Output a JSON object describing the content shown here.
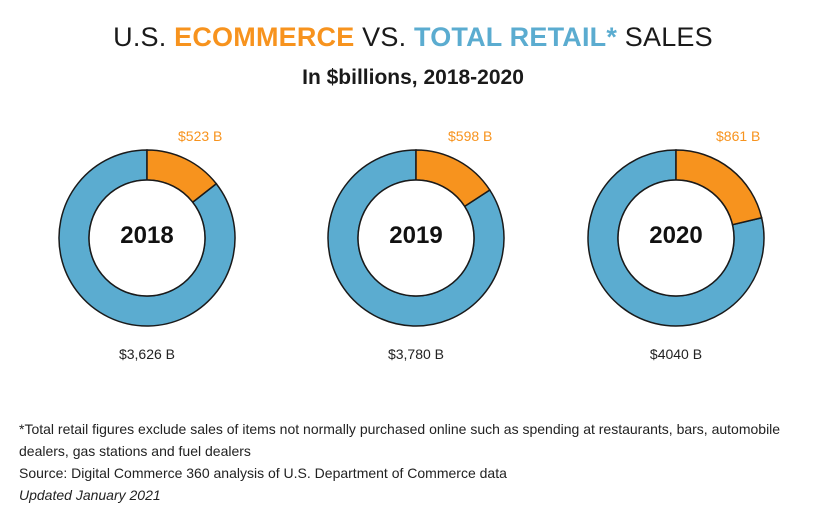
{
  "header": {
    "title_prefix": "U.S. ",
    "title_ecommerce": "ECOMMERCE",
    "title_vs": " VS. ",
    "title_total": "TOTAL RETAIL*",
    "title_suffix": " SALES",
    "subtitle": "In $billions, 2018-2020"
  },
  "colors": {
    "ecommerce": "#f7931e",
    "total": "#5bacd0"
  },
  "chart_data": {
    "type": "pie",
    "title": "U.S. ECOMMERCE VS. TOTAL RETAIL* SALES",
    "subtitle": "In $billions, 2018-2020",
    "series": [
      {
        "name": "2018",
        "ecommerce": 523,
        "total": 3626,
        "ecommerce_label": "$523 B",
        "total_label": "$3,626 B"
      },
      {
        "name": "2019",
        "ecommerce": 598,
        "total": 3780,
        "ecommerce_label": "$598 B",
        "total_label": "$3,780 B"
      },
      {
        "name": "2020",
        "ecommerce": 861,
        "total": 4040,
        "ecommerce_label": "$861 B",
        "total_label": "$4040 B"
      }
    ]
  },
  "footnote": {
    "line1": "*Total retail figures exclude sales of items not normally purchased online such as spending at restaurants, bars, automobile dealers, gas stations and fuel dealers",
    "source": "Source: Digital Commerce 360 analysis of U.S. Department of Commerce data",
    "updated": "Updated January 2021"
  }
}
